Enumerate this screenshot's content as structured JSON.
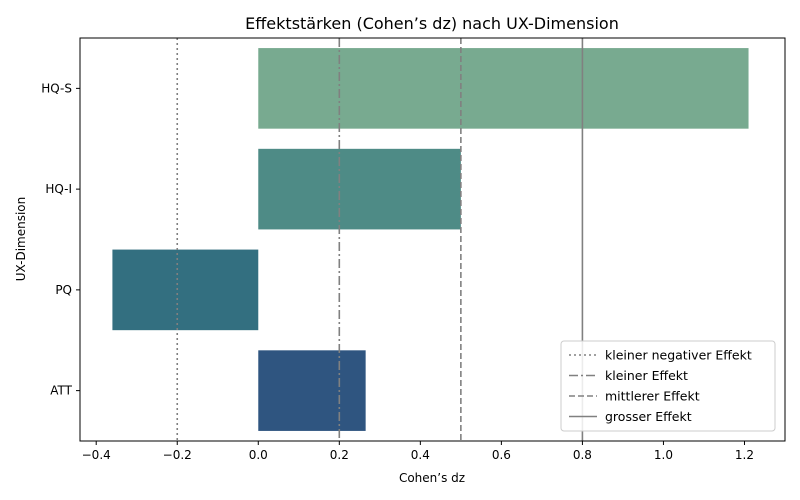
{
  "chart_data": {
    "type": "bar",
    "orientation": "horizontal",
    "title": "Effektstärken (Cohen’s dz) nach UX-Dimension",
    "xlabel": "Cohen’s dz",
    "ylabel": "UX-Dimension",
    "categories": [
      "HQ-S",
      "HQ-I",
      "PQ",
      "ATT"
    ],
    "values": [
      1.21,
      0.5,
      -0.36,
      0.265
    ],
    "colors": [
      "#78aa90",
      "#4e8b86",
      "#336f80",
      "#2f5580"
    ],
    "xlim": [
      -0.44,
      1.3
    ],
    "xticks": [
      -0.4,
      -0.2,
      0.0,
      0.2,
      0.4,
      0.6,
      0.8,
      1.0,
      1.2
    ],
    "xtick_labels": [
      "−0.4",
      "−0.2",
      "0.0",
      "0.2",
      "0.4",
      "0.6",
      "0.8",
      "1.0",
      "1.2"
    ],
    "grid": false,
    "reference_lines": [
      {
        "x": -0.2,
        "label": "kleiner negativer Effekt",
        "style": "dotted"
      },
      {
        "x": 0.2,
        "label": "kleiner Effekt",
        "style": "dashdot"
      },
      {
        "x": 0.5,
        "label": "mittlerer Effekt",
        "style": "dashed"
      },
      {
        "x": 0.8,
        "label": "grosser Effekt",
        "style": "solid"
      }
    ],
    "reference_color": "#808080",
    "legend_position": "lower-right"
  }
}
